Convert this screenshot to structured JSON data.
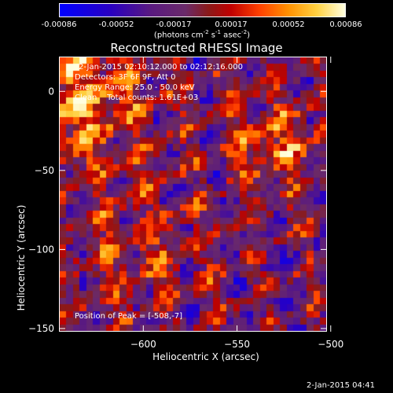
{
  "colorbar": {
    "ticks": [
      "-0.00086",
      "-0.00052",
      "-0.00017",
      "0.00017",
      "0.00052",
      "0.00086"
    ],
    "unit_prefix": "(photons cm",
    "unit_exp1": "-2",
    "unit_mid1": " s",
    "unit_exp2": "-1",
    "unit_mid2": " asec",
    "unit_exp3": "-2",
    "unit_suffix": ")"
  },
  "chart_data": {
    "type": "heatmap",
    "title": "Reconstructed RHESSI Image",
    "xlabel": "Heliocentric X (arcsec)",
    "ylabel": "Heliocentric Y (arcsec)",
    "xlim": [
      -645,
      -502
    ],
    "ylim": [
      -152,
      22
    ],
    "xticks": [
      -600,
      -550,
      -500
    ],
    "yticks": [
      0,
      -50,
      -100,
      -150
    ],
    "zlim": [
      -0.00086,
      0.00086
    ],
    "grid": false
  },
  "annotations": {
    "line1": "2-Jan-2015 02:10:12.000 to 02:12:16.000",
    "line2": "Detectors: 3F 6F 9F, Att 0",
    "line3": "Energy Range: 25.0 - 50.0 keV",
    "line4": "Clean    Total counts: 1.61E+03",
    "peak": "Position of Peak = [-508,-7]"
  },
  "timestamp": "2-Jan-2015 04:41",
  "colors": {
    "low": "#0000ff",
    "mid": "#6a2a6a",
    "high": "#ffffe0"
  }
}
